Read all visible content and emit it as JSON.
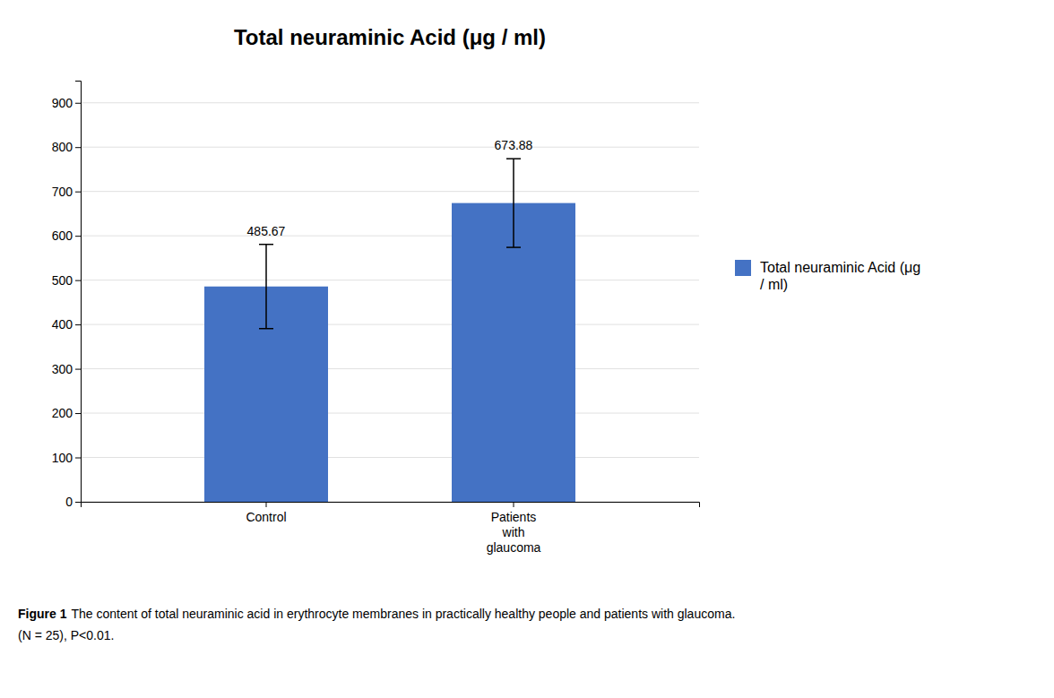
{
  "chart_data": {
    "type": "bar",
    "title": "Total neuraminic Acid (μg / ml)",
    "categories": [
      "Control",
      "Patients\nwith\nglaucoma"
    ],
    "series": [
      {
        "name": "Total neuraminic Acid (μg\n/ ml)",
        "color": "#4472C4",
        "values": [
          485.67,
          673.88
        ],
        "errors": [
          95,
          100
        ]
      }
    ],
    "ylim": [
      0,
      950
    ],
    "yticks": [
      0,
      100,
      200,
      300,
      400,
      500,
      600,
      700,
      800,
      900
    ],
    "grid": true,
    "legend": "right",
    "data_labels": true,
    "caption": [
      "Figure 1",
      "The content of total neuraminic acid in erythrocyte membranes in practically healthy people and patients with glaucoma.",
      "(N = 25), P<0.01."
    ]
  }
}
